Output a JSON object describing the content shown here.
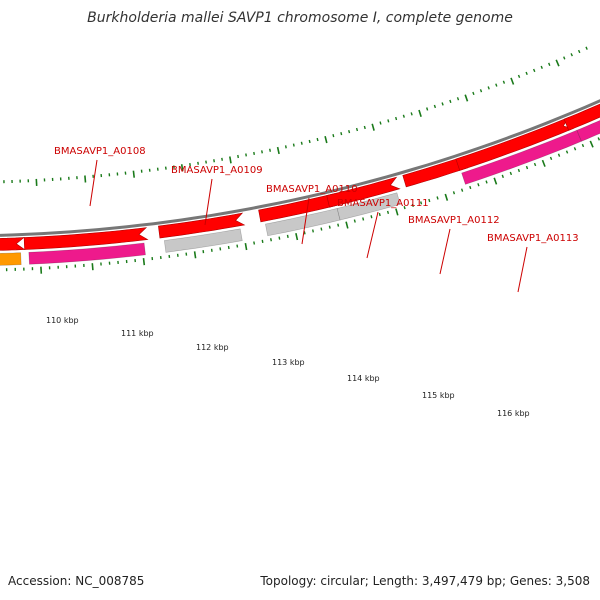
{
  "title": "Burkholderia mallei SAVP1 chromosome I, complete genome",
  "footer": {
    "accession": "Accession: NC_008785",
    "info": "Topology: circular; Length: 3,497,479 bp; Genes: 3,508"
  },
  "colors": {
    "label_red": "#cc0000",
    "tick_green": "#1a7a1a",
    "cds_red": "#ff0000",
    "gene_magenta": "#ee1a8c",
    "gene_gray": "#c8c8c8",
    "gene_orange": "#ff9900",
    "backbone": "#777777"
  },
  "gene_labels": [
    {
      "id": "a0108",
      "text": "BMASAVP1_A0108"
    },
    {
      "id": "a0109",
      "text": "BMASAVP1_A0109"
    },
    {
      "id": "a0110",
      "text": "BMASAVP1_A0110"
    },
    {
      "id": "a0111",
      "text": "BMASAVP1_A0111"
    },
    {
      "id": "a0112",
      "text": "BMASAVP1_A0112"
    },
    {
      "id": "a0113",
      "text": "BMASAVP1_A0113"
    }
  ],
  "kbp_labels": [
    {
      "id": "110",
      "text": "110 kbp"
    },
    {
      "id": "111",
      "text": "111 kbp"
    },
    {
      "id": "112",
      "text": "112 kbp"
    },
    {
      "id": "113",
      "text": "113 kbp"
    },
    {
      "id": "114",
      "text": "114 kbp"
    },
    {
      "id": "115",
      "text": "115 kbp"
    },
    {
      "id": "116",
      "text": "116 kbp"
    }
  ]
}
